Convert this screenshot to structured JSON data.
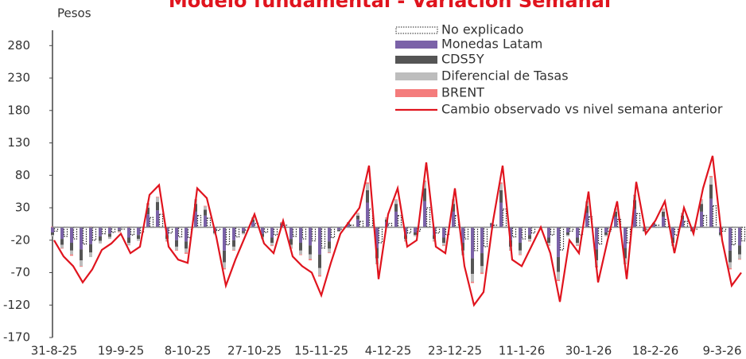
{
  "chart_data": {
    "type": "bar",
    "title": "Modelo fundamental - Variación Semanal",
    "y_label": "Pesos",
    "categories": [
      "31-8-25",
      null,
      null,
      null,
      null,
      null,
      null,
      "19-9-25",
      null,
      null,
      null,
      null,
      null,
      null,
      "8-10-25",
      null,
      null,
      null,
      null,
      null,
      null,
      "27-10-25",
      null,
      null,
      null,
      null,
      null,
      null,
      "15-11-25",
      null,
      null,
      null,
      null,
      null,
      null,
      "4-12-25",
      null,
      null,
      null,
      null,
      null,
      null,
      "23-12-25",
      null,
      null,
      null,
      null,
      null,
      null,
      "11-1-26",
      null,
      null,
      null,
      null,
      null,
      null,
      "30-1-26",
      null,
      null,
      null,
      null,
      null,
      null,
      "18-2-26",
      null,
      null,
      null,
      null,
      null,
      null,
      "9-3-26",
      null,
      null
    ],
    "ylim": [
      -170,
      300
    ],
    "yticks": [
      -170,
      -120,
      -70,
      -20,
      30,
      80,
      130,
      180,
      230,
      280
    ],
    "series": [
      {
        "name": "No explicado",
        "color": "#222222",
        "style": "dotted",
        "values": [
          -6,
          -14,
          -18,
          -26,
          -20,
          -10,
          -8,
          -3,
          -12,
          -9,
          15,
          20,
          -9,
          -15,
          -16,
          18,
          14,
          -5,
          -27,
          -15,
          -5,
          6,
          -8,
          -12,
          3,
          -14,
          -18,
          -21,
          -32,
          -16,
          -3,
          3,
          9,
          28,
          -24,
          6,
          18,
          -9,
          -6,
          30,
          -9,
          -12,
          18,
          -18,
          -36,
          -30,
          3,
          28,
          -15,
          -18,
          -9,
          0,
          -12,
          -35,
          -6,
          -12,
          16,
          -26,
          -6,
          12,
          -24,
          21,
          -3,
          3,
          12,
          -12,
          9,
          -3,
          18,
          33,
          -6,
          -27,
          -21
        ]
      },
      {
        "name": "Monedas Latam",
        "color": "#7b62a8",
        "values": [
          -8,
          -18,
          -24,
          -34,
          -26,
          -14,
          -10,
          -4,
          -16,
          -12,
          20,
          26,
          -12,
          -20,
          -22,
          24,
          18,
          -6,
          -36,
          -20,
          -6,
          8,
          -10,
          -16,
          4,
          -18,
          -24,
          -28,
          -42,
          -22,
          -4,
          4,
          12,
          38,
          -32,
          8,
          24,
          -12,
          -8,
          40,
          -12,
          -16,
          24,
          -24,
          -48,
          -40,
          4,
          38,
          -20,
          -24,
          -12,
          0,
          -16,
          -46,
          -8,
          -16,
          22,
          -34,
          -8,
          16,
          -32,
          28,
          -4,
          4,
          16,
          -16,
          12,
          -4,
          24,
          44,
          -8,
          -36,
          -28
        ]
      },
      {
        "name": "CDS5Y",
        "color": "#555555",
        "values": [
          -4,
          -9,
          -12,
          -17,
          -13,
          -7,
          -5,
          -2,
          -8,
          -6,
          10,
          13,
          -6,
          -10,
          -11,
          12,
          9,
          -3,
          -18,
          -10,
          -3,
          4,
          -5,
          -8,
          2,
          -9,
          -12,
          -14,
          -21,
          -11,
          -2,
          2,
          6,
          19,
          -16,
          4,
          12,
          -6,
          -4,
          20,
          -6,
          -8,
          12,
          -12,
          -24,
          -20,
          2,
          19,
          -10,
          -12,
          -6,
          0,
          -8,
          -23,
          -4,
          -8,
          11,
          -17,
          -4,
          8,
          -16,
          14,
          -2,
          2,
          8,
          -8,
          6,
          -2,
          12,
          22,
          -4,
          -18,
          -14
        ]
      },
      {
        "name": "Diferencial de Tasas",
        "color": "#bdbdbd",
        "values": [
          -2,
          -5,
          -6,
          -9,
          -7,
          -4,
          -3,
          -1,
          -4,
          -3,
          5,
          7,
          -3,
          -5,
          -6,
          6,
          5,
          -2,
          -9,
          -5,
          -2,
          2,
          -3,
          -4,
          1,
          -5,
          -6,
          -7,
          -11,
          -6,
          -1,
          1,
          3,
          10,
          -8,
          2,
          6,
          -3,
          -2,
          10,
          -3,
          -4,
          6,
          -6,
          -12,
          -10,
          1,
          10,
          -5,
          -6,
          -3,
          0,
          -4,
          -12,
          -2,
          -4,
          6,
          -9,
          -2,
          4,
          -8,
          7,
          -1,
          1,
          4,
          -4,
          3,
          -1,
          6,
          11,
          -2,
          -9,
          -7
        ]
      },
      {
        "name": "BRENT",
        "color": "#f47c7c",
        "values": [
          1,
          -1,
          -2,
          -1,
          1,
          0,
          1,
          -1,
          1,
          0,
          2,
          1,
          -1,
          -1,
          -2,
          1,
          1,
          0,
          -2,
          -1,
          0,
          1,
          0,
          -1,
          1,
          -1,
          -1,
          -2,
          -2,
          -1,
          0,
          1,
          1,
          2,
          -1,
          1,
          1,
          -1,
          0,
          2,
          -1,
          -1,
          1,
          -1,
          -2,
          -2,
          0,
          2,
          -1,
          -1,
          -1,
          0,
          -1,
          -2,
          0,
          -1,
          1,
          -2,
          0,
          1,
          -1,
          1,
          0,
          0,
          1,
          -1,
          1,
          0,
          1,
          2,
          0,
          -2,
          -1
        ]
      },
      {
        "name": "Cambio observado vs nivel semana anterior",
        "color": "#e0141e",
        "type": "line",
        "values": [
          -20,
          -45,
          -60,
          -85,
          -65,
          -35,
          -25,
          -10,
          -40,
          -30,
          50,
          65,
          -30,
          -50,
          -55,
          60,
          45,
          -15,
          -90,
          -50,
          -15,
          20,
          -25,
          -40,
          10,
          -45,
          -60,
          -70,
          -105,
          -55,
          -10,
          10,
          30,
          95,
          -80,
          20,
          60,
          -30,
          -20,
          100,
          -30,
          -40,
          60,
          -60,
          -120,
          -100,
          10,
          95,
          -50,
          -60,
          -30,
          0,
          -40,
          -115,
          -20,
          -40,
          55,
          -85,
          -20,
          40,
          -80,
          70,
          -10,
          10,
          40,
          -40,
          30,
          -10,
          60,
          110,
          -20,
          -90,
          -70
        ]
      }
    ]
  }
}
